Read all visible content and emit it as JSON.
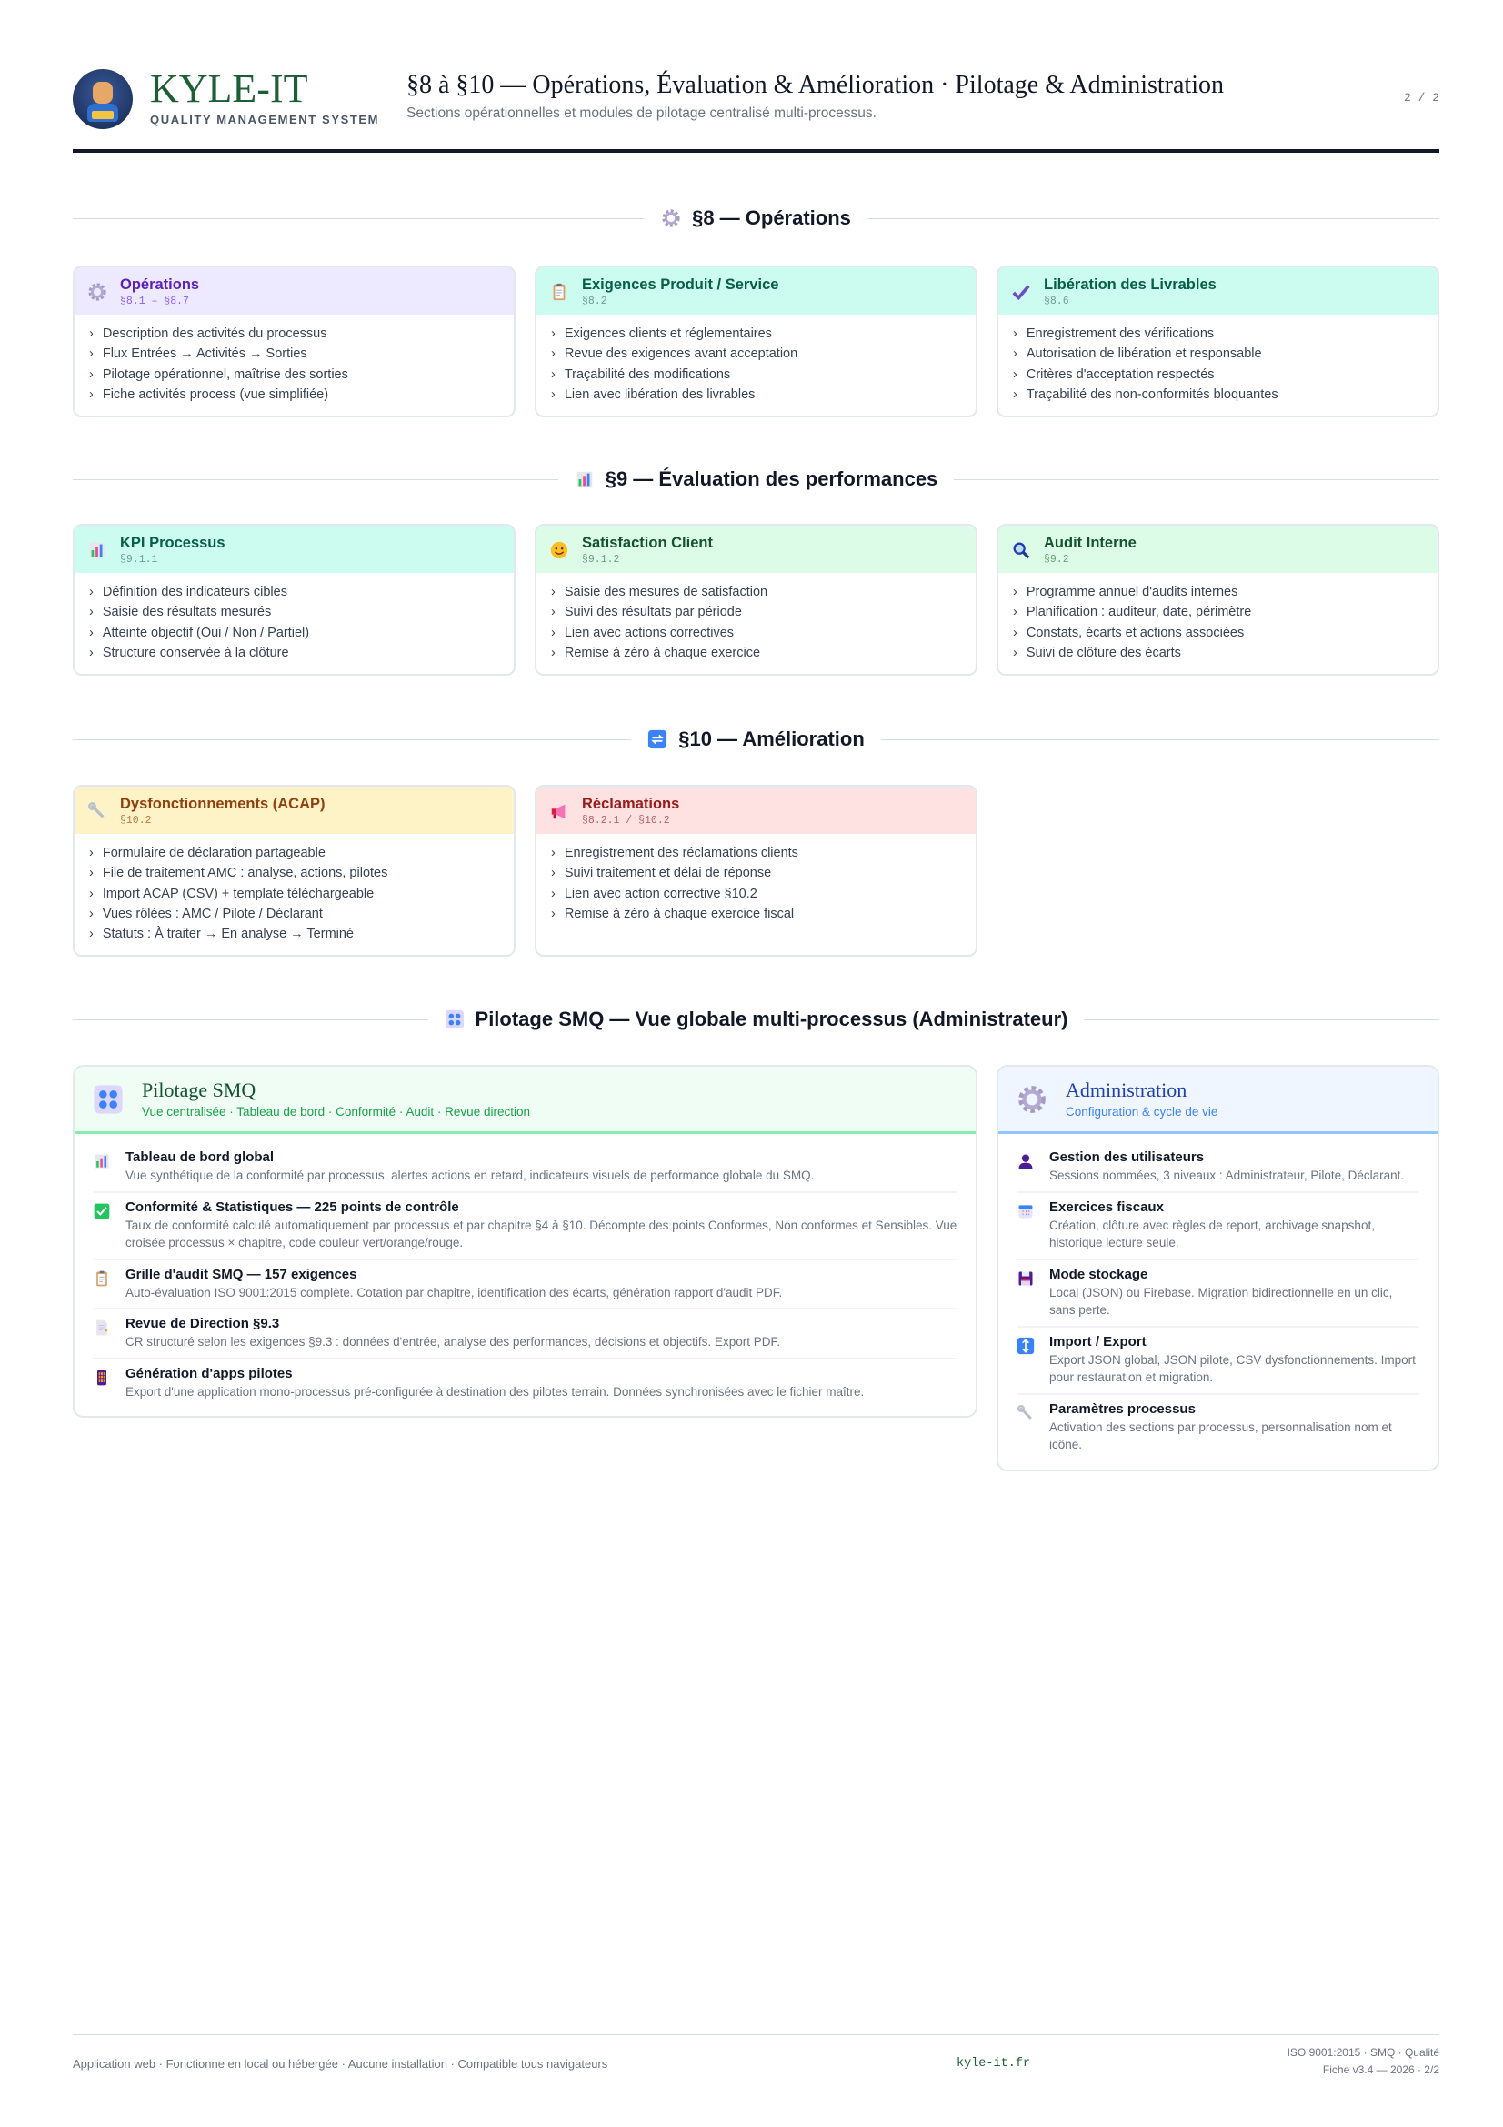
{
  "header": {
    "brand": "KYLE-IT",
    "brand_sub": "QUALITY MANAGEMENT SYSTEM",
    "title": "§8 à §10 — Opérations, Évaluation & Amélioration · Pilotage & Administration",
    "subtitle": "Sections opérationnelles et modules de pilotage centralisé multi-processus.",
    "page": "2 / 2"
  },
  "sections": [
    {
      "label": "§8 — Opérations",
      "icon": "gear-icon",
      "cards": [
        {
          "title": "Opérations",
          "ref": "§8.1 – §8.7",
          "icon": "gear-icon",
          "bg": "#ede9fe",
          "tc": "#5b21b6",
          "rc": "#8b5cf6",
          "items": [
            "Description des activités du processus",
            "Flux Entrées → Activités → Sorties",
            "Pilotage opérationnel, maîtrise des sorties",
            "Fiche activités process (vue simplifiée)"
          ]
        },
        {
          "title": "Exigences Produit / Service",
          "ref": "§8.2",
          "icon": "clipboard-icon",
          "bg": "#ccfbef",
          "tc": "#065f46",
          "rc": "#6b9f90",
          "items": [
            "Exigences clients et réglementaires",
            "Revue des exigences avant acceptation",
            "Traçabilité des modifications",
            "Lien avec libération des livrables"
          ]
        },
        {
          "title": "Libération des Livrables",
          "ref": "§8.6",
          "icon": "check-mark-icon",
          "bg": "#ccfbef",
          "tc": "#065f46",
          "rc": "#6b9f90",
          "items": [
            "Enregistrement des vérifications",
            "Autorisation de libération et responsable",
            "Critères d'acceptation respectés",
            "Traçabilité des non-conformités bloquantes"
          ]
        }
      ]
    },
    {
      "label": "§9 — Évaluation des performances",
      "icon": "bar-chart-icon",
      "cards": [
        {
          "title": "KPI Processus",
          "ref": "§9.1.1",
          "icon": "bar-chart-icon",
          "bg": "#ccfbef",
          "tc": "#065f46",
          "rc": "#6b9f90",
          "items": [
            "Définition des indicateurs cibles",
            "Saisie des résultats mesurés",
            "Atteinte objectif (Oui / Non / Partiel)",
            "Structure conservée à la clôture"
          ]
        },
        {
          "title": "Satisfaction Client",
          "ref": "§9.1.2",
          "icon": "smiley-icon",
          "bg": "#dcfce7",
          "tc": "#14532d",
          "rc": "#6b9f7a",
          "items": [
            "Saisie des mesures de satisfaction",
            "Suivi des résultats par période",
            "Lien avec actions correctives",
            "Remise à zéro à chaque exercice"
          ]
        },
        {
          "title": "Audit Interne",
          "ref": "§9.2",
          "icon": "magnifier-icon",
          "bg": "#dcfce7",
          "tc": "#14532d",
          "rc": "#6b9f7a",
          "items": [
            "Programme annuel d'audits internes",
            "Planification : auditeur, date, périmètre",
            "Constats, écarts et actions associées",
            "Suivi de clôture des écarts"
          ]
        }
      ]
    },
    {
      "label": "§10 — Amélioration",
      "icon": "repeat-icon",
      "cards": [
        {
          "title": "Dysfonctionnements (ACAP)",
          "ref": "§10.2",
          "icon": "wrench-icon",
          "bg": "#fef3c7",
          "tc": "#92400e",
          "rc": "#b7794a",
          "items": [
            "Formulaire de déclaration partageable",
            "File de traitement AMC : analyse, actions, pilotes",
            "Import ACAP (CSV) + template téléchargeable",
            "Vues rôlées : AMC / Pilote / Déclarant",
            "Statuts : À traiter → En analyse → Terminé"
          ]
        },
        {
          "title": "Réclamations",
          "ref": "§8.2.1 / §10.2",
          "icon": "megaphone-icon",
          "bg": "#fee2e2",
          "tc": "#991b1b",
          "rc": "#b86060",
          "items": [
            "Enregistrement des réclamations clients",
            "Suivi traitement et délai de réponse",
            "Lien avec action corrective §10.2",
            "Remise à zéro à chaque exercice fiscal"
          ]
        }
      ]
    }
  ],
  "pilotage_heading": {
    "label": "Pilotage SMQ — Vue globale multi-processus (Administrateur)",
    "icon": "control-knobs-icon"
  },
  "pilotage": {
    "title": "Pilotage SMQ",
    "subtitle": "Vue centralisée · Tableau de bord · Conformité · Audit · Revue direction",
    "icon": "control-knobs-icon",
    "bg": "#f0fdf4",
    "accent": "#86efac",
    "tc": "#14532d",
    "sc": "#16a34a",
    "items": [
      {
        "title": "Tableau de bord global",
        "desc": "Vue synthétique de la conformité par processus, alertes actions en retard, indicateurs visuels de performance globale du SMQ.",
        "icon": "bar-chart-icon"
      },
      {
        "title": "Conformité & Statistiques — 225 points de contrôle",
        "desc": "Taux de conformité calculé automatiquement par processus et par chapitre §4 à §10. Décompte des points Conformes, Non conformes et Sensibles. Vue croisée processus × chapitre, code couleur vert/orange/rouge.",
        "icon": "check-box-icon"
      },
      {
        "title": "Grille d'audit SMQ — 157 exigences",
        "desc": "Auto-évaluation ISO 9001:2015 complète. Cotation par chapitre, identification des écarts, génération rapport d'audit PDF.",
        "icon": "clipboard-icon"
      },
      {
        "title": "Revue de Direction §9.3",
        "desc": "CR structuré selon les exigences §9.3 : données d'entrée, analyse des performances, décisions et objectifs. Export PDF.",
        "icon": "document-icon"
      },
      {
        "title": "Génération d'apps pilotes",
        "desc": "Export d'une application mono-processus pré-configurée à destination des pilotes terrain. Données synchronisées avec le fichier maître.",
        "icon": "mobile-phone-icon"
      }
    ]
  },
  "administration": {
    "title": "Administration",
    "subtitle": "Configuration & cycle de vie",
    "icon": "gear-icon",
    "bg": "#eff6ff",
    "accent": "#93c5fd",
    "tc": "#1e40af",
    "sc": "#3b82f6",
    "items": [
      {
        "title": "Gestion des utilisateurs",
        "desc": "Sessions nommées, 3 niveaux : Administrateur, Pilote, Déclarant.",
        "icon": "user-icon"
      },
      {
        "title": "Exercices fiscaux",
        "desc": "Création, clôture avec règles de report, archivage snapshot, historique lecture seule.",
        "icon": "calendar-icon"
      },
      {
        "title": "Mode stockage",
        "desc": "Local (JSON) ou Firebase. Migration bidirectionnelle en un clic, sans perte.",
        "icon": "floppy-disk-icon"
      },
      {
        "title": "Import / Export",
        "desc": "Export JSON global, JSON pilote, CSV dysfonctionnements. Import pour restauration et migration.",
        "icon": "up-down-arrow-icon"
      },
      {
        "title": "Paramètres processus",
        "desc": "Activation des sections par processus, personnalisation nom et icône.",
        "icon": "wrench-icon"
      }
    ]
  },
  "footer": {
    "left": "Application web · Fonctionne en local ou hébergée · Aucune installation · Compatible tous navigateurs",
    "center": "kyle-it.fr",
    "right1": "ISO 9001:2015 · SMQ · Qualité",
    "right2": "Fiche v3.4 — 2026 · 2/2"
  }
}
